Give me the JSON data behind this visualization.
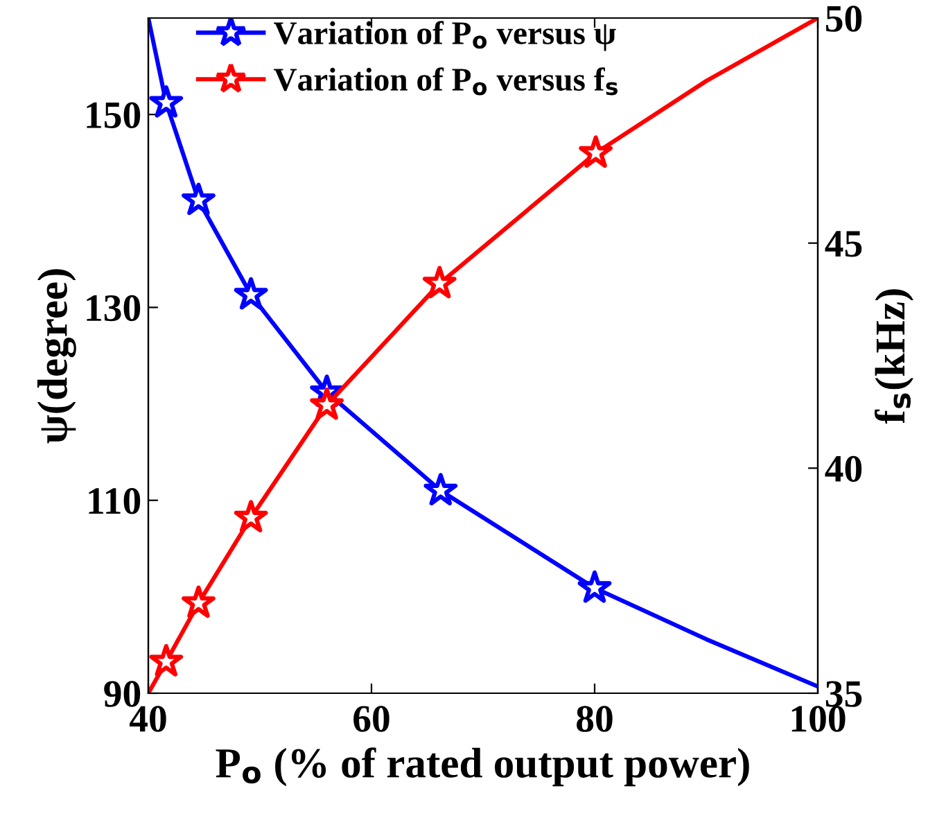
{
  "chart_data": {
    "type": "line",
    "xlabel": "P$_{o}$ (% of rated output power)",
    "ylabel": "ψ(degree)",
    "y2label": "f$_{s}$(kHz)",
    "xlim": [
      40,
      100
    ],
    "xticks": [
      40,
      60,
      80,
      100
    ],
    "ylim": [
      90,
      160
    ],
    "yticks": [
      90,
      110,
      130,
      150
    ],
    "y2lim": [
      35,
      50
    ],
    "y2ticks": [
      35,
      40,
      45,
      50
    ],
    "grid": false,
    "legend": "top left",
    "line_style": "solid",
    "series": [
      {
        "color": "#0000ff",
        "marker": "none",
        "x": [
          40,
          41.6,
          44.5,
          49.2,
          56.0,
          66.2,
          80.0,
          90,
          100
        ],
        "values": [
          160,
          151.2,
          141.1,
          131.3,
          121.2,
          111,
          100.9,
          95.6,
          90.7
        ]
      },
      {
        "type": "scatter",
        "name": "Variation of P$_{o}$ versus ψ",
        "color": "#0000ff",
        "marker": "star",
        "x": [
          41.6,
          44.5,
          49.2,
          56.0,
          66.2,
          80.0
        ],
        "values": [
          151.2,
          141.1,
          131.3,
          121.2,
          111,
          100.9
        ]
      },
      {
        "axis": "y2",
        "color": "#ff0000",
        "marker": "none",
        "x": [
          40,
          41.6,
          44.5,
          49.2,
          56.0,
          66.1,
          80.1,
          90,
          100
        ],
        "values": [
          35,
          35.7,
          37.0,
          38.9,
          41.4,
          44.1,
          47.0,
          48.6,
          50
        ]
      },
      {
        "type": "scatter",
        "axis": "y2",
        "name": "Variation of P$_{o}$ versus f$_{s}$",
        "color": "#ff0000",
        "marker": "star",
        "x": [
          41.6,
          44.5,
          49.2,
          56.0,
          66.1,
          80.1
        ],
        "values": [
          35.7,
          37.0,
          38.9,
          41.4,
          44.1,
          47.0
        ]
      }
    ]
  }
}
